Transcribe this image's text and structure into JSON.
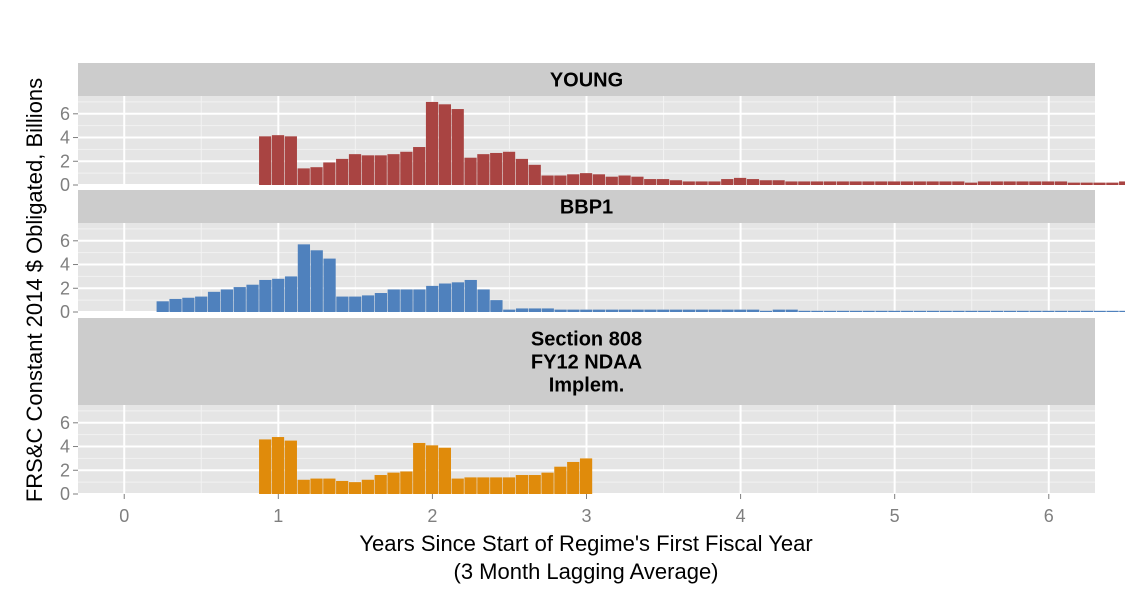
{
  "chart_data": {
    "type": "bar",
    "x_label_lines": [
      "Years Since Start of Regime's First Fiscal Year",
      "(3 Month Lagging Average)"
    ],
    "ylabel": "FRS&C Constant 2014 $ Obligated, Billions",
    "xlim": [
      -0.3,
      6.3
    ],
    "x_ticks": [
      0,
      1,
      2,
      3,
      4,
      5,
      6
    ],
    "x_tick_labels": [
      "0",
      "1",
      "2",
      "3",
      "4",
      "5",
      "6"
    ],
    "ylim": [
      0,
      7.5
    ],
    "y_ticks": [
      0,
      2,
      4,
      6
    ],
    "y_tick_labels": [
      "0",
      "2",
      "4",
      "6"
    ],
    "bin_width": 0.0833,
    "grid": true,
    "legend": "none",
    "panels": [
      {
        "title_lines": [
          "YOUNG"
        ],
        "color": "#a94442",
        "x_start": 0.875,
        "values": [
          4.1,
          4.2,
          4.1,
          1.4,
          1.5,
          1.9,
          2.2,
          2.6,
          2.5,
          2.5,
          2.6,
          2.8,
          3.2,
          7.0,
          6.8,
          6.4,
          2.3,
          2.6,
          2.7,
          2.8,
          2.2,
          1.7,
          0.8,
          0.8,
          0.9,
          1.0,
          0.9,
          0.7,
          0.8,
          0.7,
          0.5,
          0.5,
          0.4,
          0.3,
          0.3,
          0.3,
          0.5,
          0.6,
          0.5,
          0.4,
          0.4,
          0.3,
          0.3,
          0.3,
          0.3,
          0.3,
          0.3,
          0.3,
          0.3,
          0.3,
          0.3,
          0.3,
          0.3,
          0.3,
          0.3,
          0.2,
          0.3,
          0.3,
          0.3,
          0.3,
          0.3,
          0.3,
          0.3,
          0.2,
          0.2,
          0.2,
          0.2,
          0.3,
          0.3,
          0.3,
          0.3,
          0.3,
          0.3,
          0.3,
          0.2,
          0.2,
          0.2,
          0.2,
          0.2,
          0.2,
          0.1
        ]
      },
      {
        "title_lines": [
          "BBP1"
        ],
        "color": "#4f81bd",
        "x_start": 0.21,
        "values": [
          0.9,
          1.1,
          1.2,
          1.3,
          1.7,
          1.9,
          2.1,
          2.3,
          2.7,
          2.8,
          3.0,
          5.7,
          5.2,
          4.5,
          1.3,
          1.3,
          1.4,
          1.6,
          1.9,
          1.9,
          1.9,
          2.2,
          2.4,
          2.5,
          2.7,
          1.9,
          1.0,
          0.2,
          0.3,
          0.3,
          0.3,
          0.2,
          0.2,
          0.2,
          0.2,
          0.2,
          0.2,
          0.2,
          0.2,
          0.2,
          0.2,
          0.2,
          0.2,
          0.2,
          0.2,
          0.2,
          0.2,
          0.1,
          0.2,
          0.2,
          0.1,
          0.1,
          0.1,
          0.1,
          0.1,
          0.1,
          0.1,
          0.1,
          0.1,
          0.1,
          0.1,
          0.1,
          0.1,
          0.1,
          0.1,
          0.1,
          0.1,
          0.1,
          0.1,
          0.1,
          0.1,
          0.1,
          0.1,
          0.1,
          0.1,
          0.1,
          0.1,
          0.1,
          0.1,
          0.1,
          0.1,
          0.1,
          0.1,
          0.1,
          0.1,
          0.1,
          0.1,
          0.1,
          0.1,
          0.1,
          0.1,
          0.1,
          0.1,
          0.1,
          0.1,
          0.1,
          0.1,
          0.1,
          0.1,
          0.1,
          0.1,
          0.1,
          0.1
        ]
      },
      {
        "title_lines": [
          "Section 808",
          "FY12 NDAA",
          "Implem."
        ],
        "color": "#e08b0b",
        "x_start": 0.875,
        "values": [
          4.6,
          4.8,
          4.5,
          1.2,
          1.3,
          1.3,
          1.1,
          1.0,
          1.2,
          1.6,
          1.8,
          1.9,
          4.3,
          4.1,
          3.9,
          1.3,
          1.4,
          1.4,
          1.4,
          1.4,
          1.6,
          1.6,
          1.8,
          2.3,
          2.7,
          3.0
        ]
      }
    ]
  }
}
